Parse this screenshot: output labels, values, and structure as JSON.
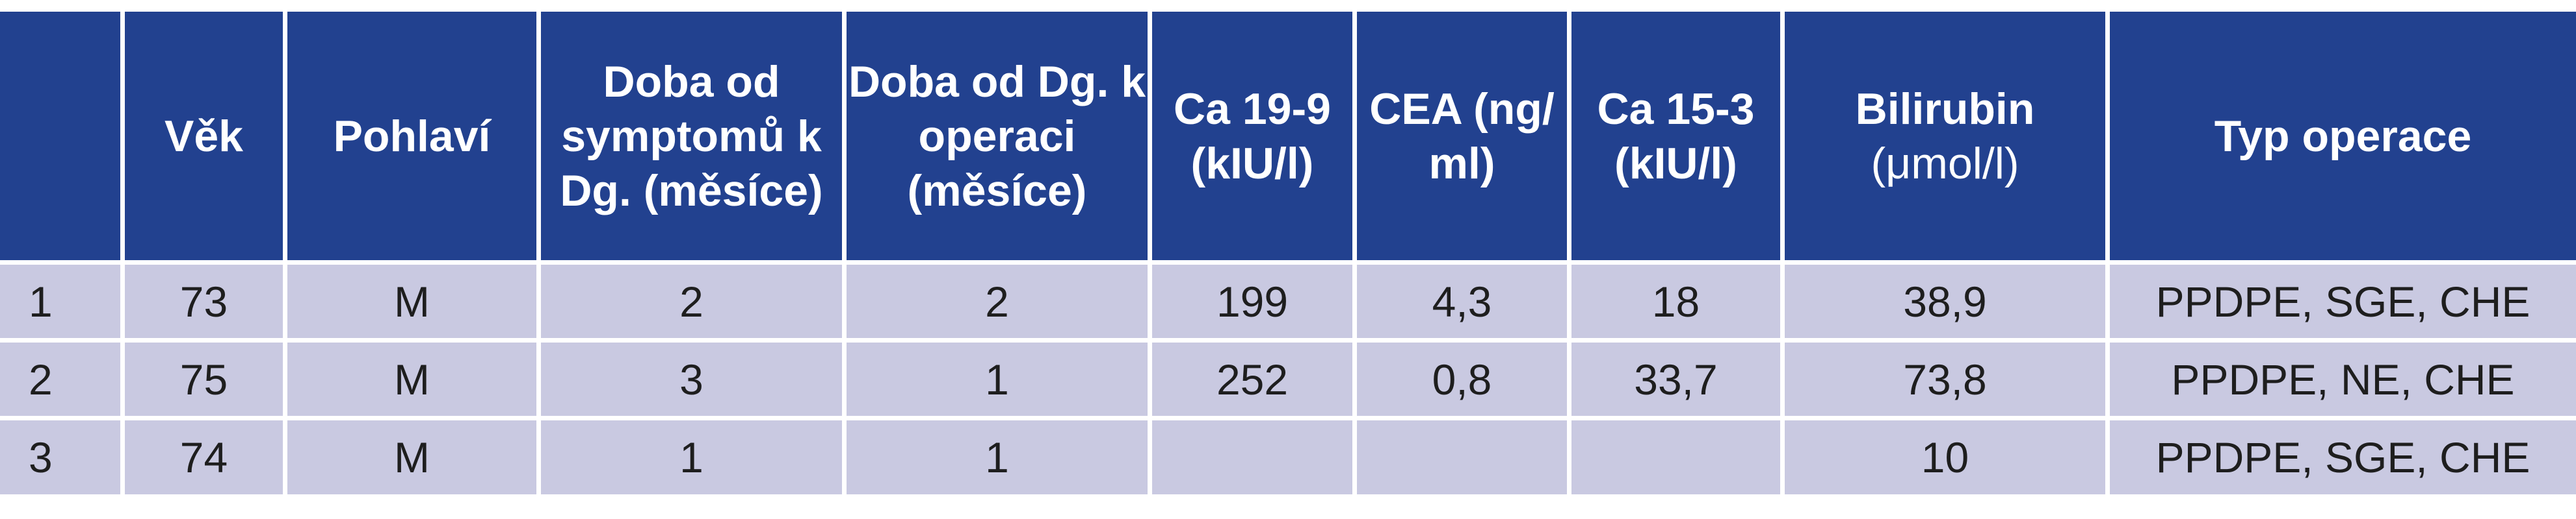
{
  "table": {
    "headers": [
      {
        "key": "idx",
        "label": ""
      },
      {
        "key": "age",
        "label": "Věk"
      },
      {
        "key": "sex",
        "label": "Pohlaví"
      },
      {
        "key": "sym",
        "label": "Doba od symptomů k Dg. (měsíce)"
      },
      {
        "key": "op",
        "label": "Doba od Dg. k operaci (měsíce)"
      },
      {
        "key": "ca199",
        "label": "Ca 19-9 (kIU/l)"
      },
      {
        "key": "cea",
        "label": "CEA (ng/ ml)"
      },
      {
        "key": "ca153",
        "label": "Ca 15-3 (kIU/l)"
      },
      {
        "key": "bili",
        "label": "Bilirubin",
        "unit": "(μmol/l)"
      },
      {
        "key": "type",
        "label": "Typ operace"
      }
    ],
    "rows": [
      [
        "1",
        "73",
        "M",
        "2",
        "2",
        "199",
        "4,3",
        "18",
        "38,9",
        "PPDPE, SGE, CHE"
      ],
      [
        "2",
        "75",
        "M",
        "3",
        "1",
        "252",
        "0,8",
        "33,7",
        "73,8",
        "PPDPE, NE, CHE"
      ],
      [
        "3",
        "74",
        "M",
        "1",
        "1",
        "",
        "",
        "",
        "10",
        "PPDPE, SGE, CHE"
      ]
    ]
  },
  "colors": {
    "header_bg": "#22418f",
    "header_text": "#ffffff",
    "row_bg": "#c9c9e1",
    "row_text": "#1e1e1e"
  }
}
